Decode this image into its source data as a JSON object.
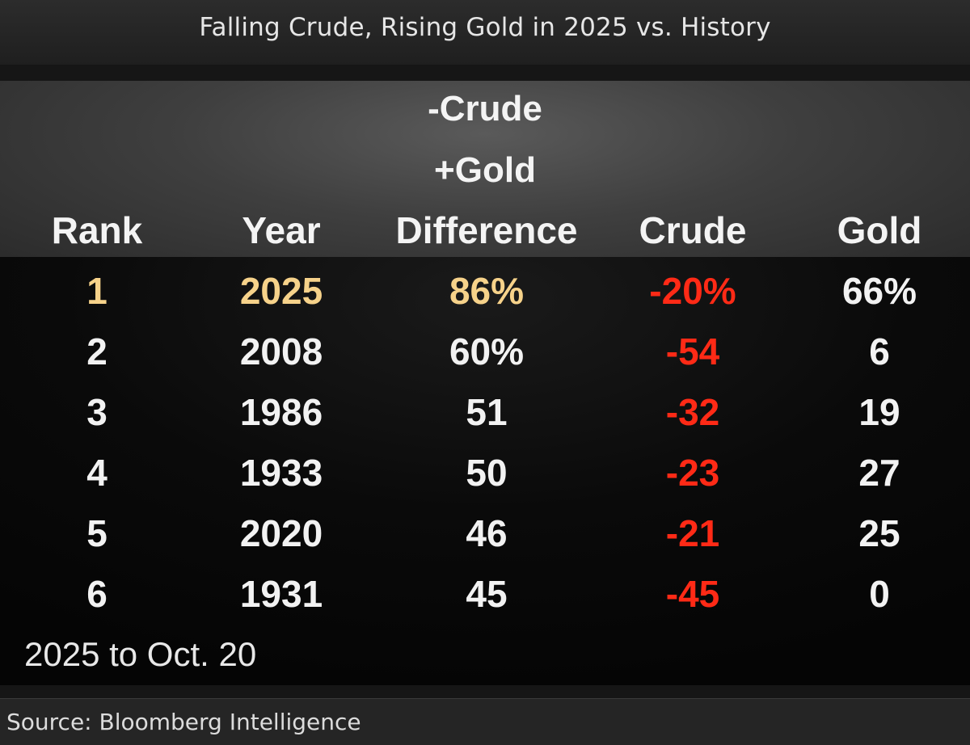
{
  "title": "Falling Crude, Rising Gold in 2025 vs. History",
  "header": {
    "group_line1": "-Crude",
    "group_line2": "+Gold",
    "columns": [
      "Rank",
      "Year",
      "Difference",
      "Crude",
      "Gold"
    ]
  },
  "rows": [
    {
      "rank": "1",
      "year": "2025",
      "difference": "86%",
      "crude": "-20%",
      "gold": "66%"
    },
    {
      "rank": "2",
      "year": "2008",
      "difference": "60%",
      "crude": "-54",
      "gold": "6"
    },
    {
      "rank": "3",
      "year": "1986",
      "difference": "51",
      "crude": "-32",
      "gold": "19"
    },
    {
      "rank": "4",
      "year": "1933",
      "difference": "50",
      "crude": "-23",
      "gold": "27"
    },
    {
      "rank": "5",
      "year": "2020",
      "difference": "46",
      "crude": "-21",
      "gold": "25"
    },
    {
      "rank": "6",
      "year": "1931",
      "difference": "45",
      "crude": "-45",
      "gold": "0"
    }
  ],
  "note": "2025 to Oct. 20",
  "source": "Source: Bloomberg Intelligence",
  "colors": {
    "highlight": "#f6d28a",
    "negative": "#ff2a16",
    "text": "#f2f2f2"
  },
  "chart_data": {
    "type": "table",
    "title": "Falling Crude, Rising Gold in 2025 vs. History",
    "columns": [
      "Rank",
      "Year",
      "Difference",
      "Crude",
      "Gold"
    ],
    "rows": [
      [
        1,
        2025,
        86,
        -20,
        66
      ],
      [
        2,
        2008,
        60,
        -54,
        6
      ],
      [
        3,
        1986,
        51,
        -32,
        19
      ],
      [
        4,
        1933,
        50,
        -23,
        27
      ],
      [
        5,
        2020,
        46,
        -21,
        25
      ],
      [
        6,
        1931,
        45,
        -45,
        0
      ]
    ]
  }
}
